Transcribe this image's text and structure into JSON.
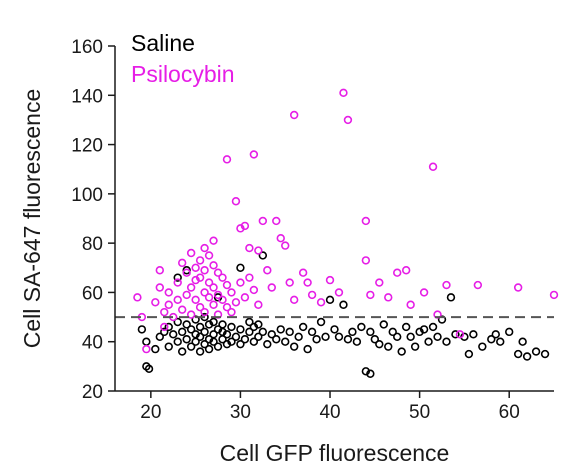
{
  "chart_data": {
    "type": "scatter",
    "xlabel": "Cell GFP fluorescence",
    "ylabel": "Cell SA-647 fluorescence",
    "xlim": [
      16,
      65
    ],
    "ylim": [
      20,
      160
    ],
    "xticks": [
      20,
      30,
      40,
      50,
      60
    ],
    "yticks": [
      20,
      40,
      60,
      80,
      100,
      120,
      140,
      160
    ],
    "threshold_y": 50,
    "legend_position": "top-left",
    "grid": false,
    "series": [
      {
        "name": "Saline",
        "color": "#000000",
        "points": [
          [
            19.0,
            45
          ],
          [
            19.5,
            30
          ],
          [
            19.8,
            29
          ],
          [
            19.5,
            40
          ],
          [
            20.5,
            37
          ],
          [
            21.0,
            42
          ],
          [
            21.5,
            44
          ],
          [
            22.0,
            38
          ],
          [
            22.0,
            46
          ],
          [
            22.5,
            43
          ],
          [
            23.0,
            40
          ],
          [
            23.0,
            48
          ],
          [
            23.5,
            36
          ],
          [
            23.5,
            44
          ],
          [
            23.0,
            66
          ],
          [
            24.0,
            41
          ],
          [
            24.0,
            47
          ],
          [
            24.5,
            38
          ],
          [
            24.5,
            45
          ],
          [
            24.0,
            69
          ],
          [
            25.0,
            40
          ],
          [
            25.0,
            43
          ],
          [
            25.0,
            49
          ],
          [
            25.5,
            36
          ],
          [
            25.5,
            42
          ],
          [
            25.5,
            46
          ],
          [
            26.0,
            39
          ],
          [
            26.0,
            44
          ],
          [
            26.0,
            50
          ],
          [
            26.5,
            37
          ],
          [
            26.5,
            41
          ],
          [
            26.5,
            47
          ],
          [
            27.0,
            40
          ],
          [
            27.0,
            43
          ],
          [
            27.0,
            48
          ],
          [
            27.5,
            38
          ],
          [
            27.5,
            45
          ],
          [
            27.5,
            58
          ],
          [
            28.0,
            41
          ],
          [
            28.0,
            44
          ],
          [
            28.0,
            47
          ],
          [
            28.5,
            39
          ],
          [
            28.5,
            43
          ],
          [
            29.0,
            40
          ],
          [
            29.0,
            46
          ],
          [
            29.5,
            42
          ],
          [
            30.0,
            39
          ],
          [
            30.0,
            45
          ],
          [
            30.0,
            70
          ],
          [
            30.5,
            41
          ],
          [
            31.0,
            44
          ],
          [
            31.0,
            48
          ],
          [
            31.5,
            40
          ],
          [
            31.5,
            46
          ],
          [
            32.0,
            42
          ],
          [
            32.0,
            47
          ],
          [
            32.5,
            75
          ],
          [
            32.5,
            44
          ],
          [
            33.0,
            39
          ],
          [
            33.5,
            43
          ],
          [
            34.0,
            41
          ],
          [
            34.5,
            45
          ],
          [
            35.0,
            40
          ],
          [
            35.5,
            44
          ],
          [
            36.0,
            38
          ],
          [
            36.5,
            42
          ],
          [
            37.0,
            46
          ],
          [
            37.5,
            37
          ],
          [
            38.0,
            44
          ],
          [
            38.5,
            41
          ],
          [
            39.0,
            48
          ],
          [
            39.5,
            42
          ],
          [
            40.0,
            57
          ],
          [
            40.5,
            45
          ],
          [
            41.0,
            42
          ],
          [
            41.5,
            55
          ],
          [
            42.0,
            41
          ],
          [
            42.5,
            44
          ],
          [
            43.0,
            40
          ],
          [
            43.5,
            46
          ],
          [
            44.0,
            28
          ],
          [
            44.5,
            27
          ],
          [
            44.5,
            44
          ],
          [
            45.0,
            41
          ],
          [
            45.5,
            39
          ],
          [
            46.0,
            47
          ],
          [
            46.5,
            38
          ],
          [
            47.0,
            44
          ],
          [
            47.5,
            42
          ],
          [
            48.0,
            36
          ],
          [
            48.5,
            46
          ],
          [
            49.0,
            42
          ],
          [
            49.5,
            38
          ],
          [
            50.0,
            44
          ],
          [
            50.5,
            45
          ],
          [
            51.0,
            40
          ],
          [
            51.5,
            46
          ],
          [
            52.0,
            42
          ],
          [
            52.5,
            49
          ],
          [
            53.0,
            40
          ],
          [
            53.5,
            58
          ],
          [
            54.0,
            43
          ],
          [
            55.0,
            42
          ],
          [
            55.5,
            35
          ],
          [
            56.0,
            43
          ],
          [
            57.0,
            38
          ],
          [
            58.0,
            41
          ],
          [
            58.5,
            43
          ],
          [
            59.0,
            40
          ],
          [
            60.0,
            44
          ],
          [
            61.0,
            35
          ],
          [
            61.5,
            40
          ],
          [
            62.0,
            34
          ],
          [
            63.0,
            36
          ],
          [
            64.0,
            35
          ]
        ]
      },
      {
        "name": "Psilocybin",
        "color": "#e61ee6",
        "points": [
          [
            18.5,
            58
          ],
          [
            19.0,
            50
          ],
          [
            19.5,
            37
          ],
          [
            20.5,
            56
          ],
          [
            21.0,
            62
          ],
          [
            21.0,
            69
          ],
          [
            21.5,
            52
          ],
          [
            21.5,
            46
          ],
          [
            22.0,
            60
          ],
          [
            22.0,
            55
          ],
          [
            22.5,
            50
          ],
          [
            23.0,
            64
          ],
          [
            23.0,
            57
          ],
          [
            23.5,
            72
          ],
          [
            23.5,
            53
          ],
          [
            24.0,
            68
          ],
          [
            24.0,
            59
          ],
          [
            24.5,
            76
          ],
          [
            24.5,
            62
          ],
          [
            24.5,
            51
          ],
          [
            25.0,
            70
          ],
          [
            25.0,
            65
          ],
          [
            25.0,
            57
          ],
          [
            25.5,
            73
          ],
          [
            25.5,
            66
          ],
          [
            25.5,
            54
          ],
          [
            26.0,
            78
          ],
          [
            26.0,
            69
          ],
          [
            26.0,
            60
          ],
          [
            26.0,
            52
          ],
          [
            26.5,
            75
          ],
          [
            26.5,
            64
          ],
          [
            26.5,
            58
          ],
          [
            27.0,
            81
          ],
          [
            27.0,
            71
          ],
          [
            27.0,
            62
          ],
          [
            27.0,
            55
          ],
          [
            27.5,
            68
          ],
          [
            27.5,
            59
          ],
          [
            27.5,
            51
          ],
          [
            28.0,
            66
          ],
          [
            28.0,
            57
          ],
          [
            28.5,
            114
          ],
          [
            28.5,
            63
          ],
          [
            28.5,
            54
          ],
          [
            29.0,
            60
          ],
          [
            29.0,
            52
          ],
          [
            29.5,
            97
          ],
          [
            29.5,
            56
          ],
          [
            30.0,
            86
          ],
          [
            30.0,
            64
          ],
          [
            30.5,
            87
          ],
          [
            30.5,
            58
          ],
          [
            31.0,
            78
          ],
          [
            31.0,
            66
          ],
          [
            31.5,
            116
          ],
          [
            31.5,
            61
          ],
          [
            32.0,
            77
          ],
          [
            32.0,
            55
          ],
          [
            32.5,
            89
          ],
          [
            33.0,
            69
          ],
          [
            33.5,
            62
          ],
          [
            34.0,
            89
          ],
          [
            34.5,
            82
          ],
          [
            35.0,
            79
          ],
          [
            35.5,
            64
          ],
          [
            36.0,
            132
          ],
          [
            36.0,
            57
          ],
          [
            37.0,
            68
          ],
          [
            37.5,
            64
          ],
          [
            38.0,
            59
          ],
          [
            39.0,
            56
          ],
          [
            40.0,
            65
          ],
          [
            41.0,
            60
          ],
          [
            41.5,
            141
          ],
          [
            42.0,
            130
          ],
          [
            44.0,
            89
          ],
          [
            44.0,
            73
          ],
          [
            44.5,
            59
          ],
          [
            45.5,
            64
          ],
          [
            46.5,
            58
          ],
          [
            47.5,
            68
          ],
          [
            48.5,
            69
          ],
          [
            49.0,
            55
          ],
          [
            50.5,
            60
          ],
          [
            51.5,
            111
          ],
          [
            52.0,
            51
          ],
          [
            53.0,
            63
          ],
          [
            54.5,
            43
          ],
          [
            56.5,
            63
          ],
          [
            61.0,
            62
          ],
          [
            65.0,
            59
          ]
        ]
      }
    ]
  }
}
